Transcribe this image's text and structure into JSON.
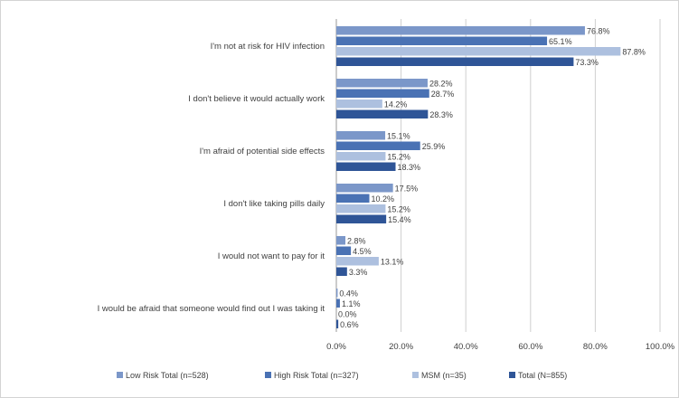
{
  "chart_data": {
    "type": "bar",
    "orientation": "horizontal",
    "title": "",
    "xlabel": "",
    "ylabel": "",
    "xlim": [
      0,
      100
    ],
    "x_ticks": [
      0,
      20,
      40,
      60,
      80,
      100
    ],
    "x_tick_labels": [
      "0.0%",
      "20.0%",
      "40.0%",
      "60.0%",
      "80.0%",
      "100.0%"
    ],
    "grid": "vertical",
    "legend_position": "bottom",
    "categories": [
      "I'm not at risk for HIV infection",
      "I don't believe it would actually work",
      "I'm afraid of potential side effects",
      "I don't like taking pills daily",
      "I would not want to pay for it",
      "I would be afraid that someone would find out I was taking it"
    ],
    "series": [
      {
        "name": "Low Risk Total (n=528)",
        "color": "#7b97c9",
        "values": [
          76.8,
          28.2,
          15.1,
          17.5,
          2.8,
          0.4
        ],
        "labels": [
          "76.8%",
          "28.2%",
          "15.1%",
          "17.5%",
          "2.8%",
          "0.4%"
        ]
      },
      {
        "name": "High Risk Total (n=327)",
        "color": "#4a72b4",
        "values": [
          65.1,
          28.7,
          25.9,
          10.2,
          4.5,
          1.1
        ],
        "labels": [
          "65.1%",
          "28.7%",
          "25.9%",
          "10.2%",
          "4.5%",
          "1.1%"
        ]
      },
      {
        "name": "MSM (n=35)",
        "color": "#adc0df",
        "values": [
          87.8,
          14.2,
          15.2,
          15.2,
          13.1,
          0.0
        ],
        "labels": [
          "87.8%",
          "14.2%",
          "15.2%",
          "15.2%",
          "13.1%",
          "0.0%"
        ]
      },
      {
        "name": "Total (N=855)",
        "color": "#2f5597",
        "values": [
          73.3,
          28.3,
          18.3,
          15.4,
          3.3,
          0.6
        ],
        "labels": [
          "73.3%",
          "28.3%",
          "18.3%",
          "15.4%",
          "3.3%",
          "0.6%"
        ]
      }
    ]
  }
}
